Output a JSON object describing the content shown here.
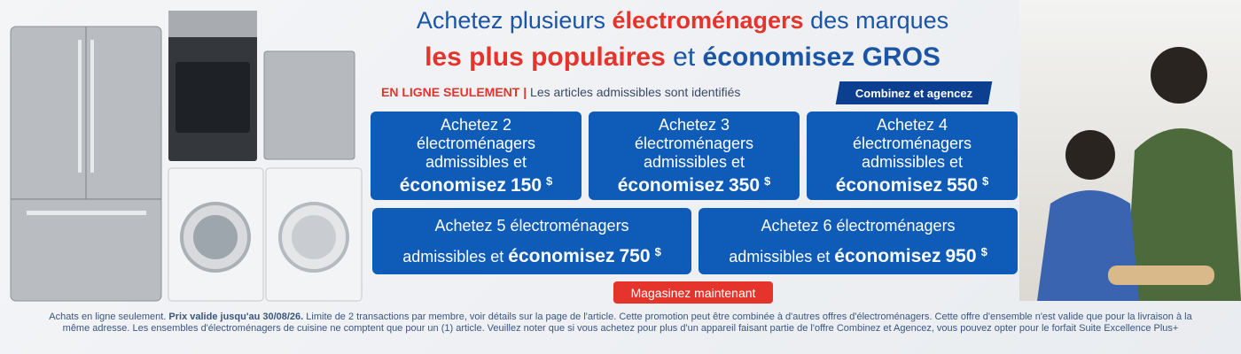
{
  "headline": {
    "line1": [
      "Achetez plusieurs ",
      "électroménagers",
      " des marques"
    ],
    "line2": [
      "les plus populaires",
      " et ",
      "économisez GROS"
    ]
  },
  "subline": {
    "online": "EN LIGNE SEULEMENT |",
    "note": "Les articles admissibles sont identifiés",
    "button": "Combinez et agencez"
  },
  "offers": [
    {
      "lines": [
        "Achetez 2",
        "électroménagers",
        "admissibles et"
      ],
      "save": "économisez",
      "amount": "150",
      "currency": "$"
    },
    {
      "lines": [
        "Achetez 3",
        "électroménagers",
        "admissibles et"
      ],
      "save": "économisez",
      "amount": "350",
      "currency": "$"
    },
    {
      "lines": [
        "Achetez 4",
        "électroménagers",
        "admissibles et"
      ],
      "save": "économisez",
      "amount": "550",
      "currency": "$"
    },
    {
      "lines": [
        "Achetez 5 électroménagers",
        "admissibles et"
      ],
      "save": "économisez",
      "amount": "750",
      "currency": "$"
    },
    {
      "lines": [
        "Achetez 6 électroménagers",
        "admissibles et"
      ],
      "save": "économisez",
      "amount": "950",
      "currency": "$"
    }
  ],
  "cta": "Magasinez maintenant",
  "disclaimer": [
    "Achats en ligne seulement. ",
    "Prix valide jusqu'au 30/08/26.",
    "  Limite de 2 transactions par membre, voir détails sur la page de l'article. Cette promotion peut être combinée à d'autres offres d'électroménagers. Cette offre d'ensemble n'est valide que pour la livraison à la même adresse. Les ensembles d'électroménagers de cuisine ne comptent que pour un (1) article. Veuillez noter que si vous achetez pour plus d'un appareil faisant partie de l'offre Combinez et Agencez, vous pouvez opter pour le forfait Suite Excellence Plus+"
  ]
}
